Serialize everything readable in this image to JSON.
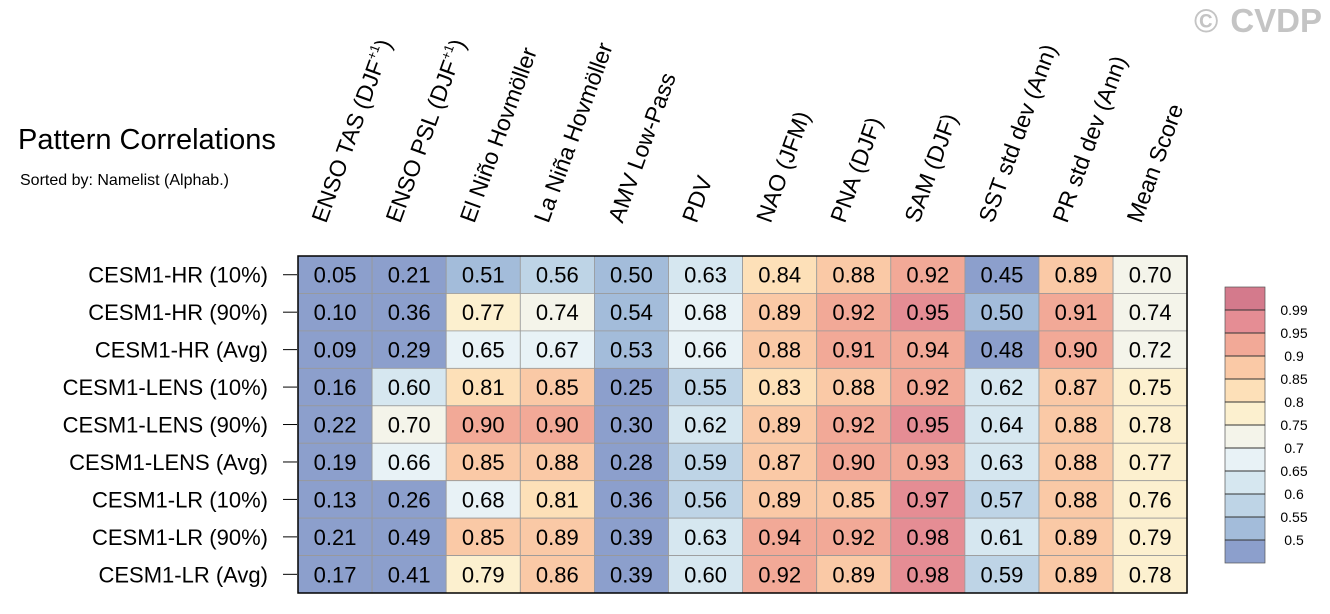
{
  "title": "Pattern Correlations",
  "subtitle": "Sorted by: Namelist (Alphab.)",
  "watermark": {
    "symbol": "©",
    "text": "CVDP"
  },
  "chart_data": {
    "type": "heatmap",
    "columns": [
      {
        "base": "ENSO TAS (DJF",
        "sup": "+1",
        "tail": ")"
      },
      {
        "base": "ENSO PSL (DJF",
        "sup": "+1",
        "tail": ")"
      },
      {
        "base": "El Niño Hovmöller"
      },
      {
        "base": "La Niña Hovmöller"
      },
      {
        "base": "AMV Low-Pass"
      },
      {
        "base": "PDV"
      },
      {
        "base": "NAO (JFM)"
      },
      {
        "base": "PNA (DJF)"
      },
      {
        "base": "SAM (DJF)"
      },
      {
        "base": "SST std dev (Ann)"
      },
      {
        "base": "PR std dev (Ann)"
      },
      {
        "base": "Mean Score"
      }
    ],
    "rows": [
      "CESM1-HR (10%)",
      "CESM1-HR (90%)",
      "CESM1-HR (Avg)",
      "CESM1-LENS (10%)",
      "CESM1-LENS (90%)",
      "CESM1-LENS (Avg)",
      "CESM1-LR (10%)",
      "CESM1-LR (90%)",
      "CESM1-LR (Avg)"
    ],
    "values": [
      [
        "0.05",
        "0.21",
        "0.51",
        "0.56",
        "0.50",
        "0.63",
        "0.84",
        "0.88",
        "0.92",
        "0.45",
        "0.89",
        "0.70"
      ],
      [
        "0.10",
        "0.36",
        "0.77",
        "0.74",
        "0.54",
        "0.68",
        "0.89",
        "0.92",
        "0.95",
        "0.50",
        "0.91",
        "0.74"
      ],
      [
        "0.09",
        "0.29",
        "0.65",
        "0.67",
        "0.53",
        "0.66",
        "0.88",
        "0.91",
        "0.94",
        "0.48",
        "0.90",
        "0.72"
      ],
      [
        "0.16",
        "0.60",
        "0.81",
        "0.85",
        "0.25",
        "0.55",
        "0.83",
        "0.88",
        "0.92",
        "0.62",
        "0.87",
        "0.75"
      ],
      [
        "0.22",
        "0.70",
        "0.90",
        "0.90",
        "0.30",
        "0.62",
        "0.89",
        "0.92",
        "0.95",
        "0.64",
        "0.88",
        "0.78"
      ],
      [
        "0.19",
        "0.66",
        "0.85",
        "0.88",
        "0.28",
        "0.59",
        "0.87",
        "0.90",
        "0.93",
        "0.63",
        "0.88",
        "0.77"
      ],
      [
        "0.13",
        "0.26",
        "0.68",
        "0.81",
        "0.36",
        "0.56",
        "0.89",
        "0.85",
        "0.97",
        "0.57",
        "0.88",
        "0.76"
      ],
      [
        "0.21",
        "0.49",
        "0.85",
        "0.89",
        "0.39",
        "0.63",
        "0.94",
        "0.92",
        "0.98",
        "0.61",
        "0.89",
        "0.79"
      ],
      [
        "0.17",
        "0.41",
        "0.79",
        "0.86",
        "0.39",
        "0.60",
        "0.92",
        "0.89",
        "0.98",
        "0.59",
        "0.89",
        "0.78"
      ]
    ],
    "colorbar": {
      "levels": [
        "0.5",
        "0.55",
        "0.6",
        "0.65",
        "0.7",
        "0.75",
        "0.8",
        "0.85",
        "0.9",
        "0.95",
        "0.99"
      ],
      "colors": [
        "#8c9fcc",
        "#a3bcda",
        "#bed4e6",
        "#d6e7f0",
        "#e8f2f6",
        "#f4f4ea",
        "#fcf0cf",
        "#fde0b8",
        "#fac9a6",
        "#f2a997",
        "#e58d94",
        "#d47a8c"
      ]
    }
  }
}
